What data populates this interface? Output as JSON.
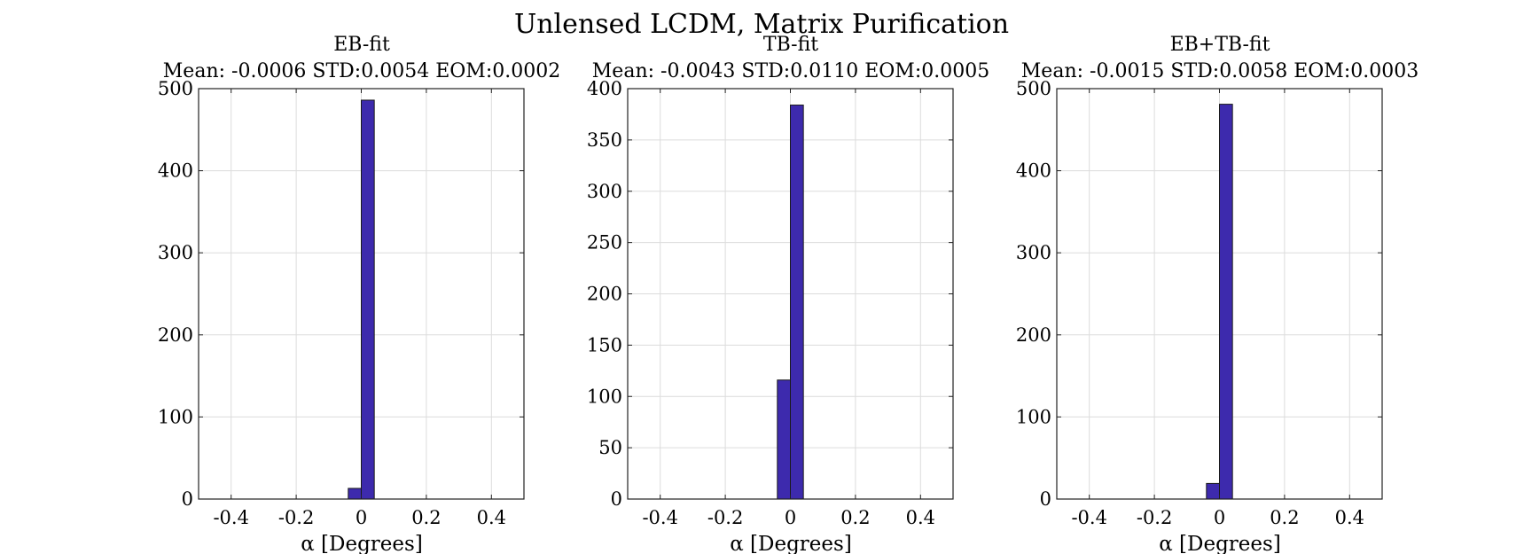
{
  "figure": {
    "title": "Unlensed LCDM, Matrix Purification",
    "bar_color": "#3d2aad"
  },
  "chart_data": [
    {
      "type": "bar",
      "title": "EB-fit",
      "subtitle": "Mean: -0.0006 STD:0.0054 EOM:0.0002",
      "xlabel": "α [Degrees]",
      "ylabel": "",
      "xlim": [
        -0.5,
        0.5
      ],
      "ylim": [
        0,
        500
      ],
      "xticks": [
        -0.4,
        -0.2,
        0,
        0.2,
        0.4
      ],
      "xtick_labels": [
        "-0.4",
        "-0.2",
        "0",
        "0.2",
        "0.4"
      ],
      "yticks": [
        0,
        100,
        200,
        300,
        400,
        500
      ],
      "ytick_labels": [
        "0",
        "100",
        "200",
        "300",
        "400",
        "500"
      ],
      "grid": true,
      "bin_edges": [
        -0.04,
        0,
        0.04
      ],
      "values": [
        13,
        486
      ]
    },
    {
      "type": "bar",
      "title": "TB-fit",
      "subtitle": "Mean: -0.0043 STD:0.0110 EOM:0.0005",
      "xlabel": "α [Degrees]",
      "ylabel": "",
      "xlim": [
        -0.5,
        0.5
      ],
      "ylim": [
        0,
        400
      ],
      "xticks": [
        -0.4,
        -0.2,
        0,
        0.2,
        0.4
      ],
      "xtick_labels": [
        "-0.4",
        "-0.2",
        "0",
        "0.2",
        "0.4"
      ],
      "yticks": [
        0,
        50,
        100,
        150,
        200,
        250,
        300,
        350,
        400
      ],
      "ytick_labels": [
        "0",
        "50",
        "100",
        "150",
        "200",
        "250",
        "300",
        "350",
        "400"
      ],
      "grid": true,
      "bin_edges": [
        -0.04,
        0,
        0.04
      ],
      "values": [
        116,
        384
      ]
    },
    {
      "type": "bar",
      "title": "EB+TB-fit",
      "subtitle": "Mean: -0.0015 STD:0.0058 EOM:0.0003",
      "xlabel": "α [Degrees]",
      "ylabel": "",
      "xlim": [
        -0.5,
        0.5
      ],
      "ylim": [
        0,
        500
      ],
      "xticks": [
        -0.4,
        -0.2,
        0,
        0.2,
        0.4
      ],
      "xtick_labels": [
        "-0.4",
        "-0.2",
        "0",
        "0.2",
        "0.4"
      ],
      "yticks": [
        0,
        100,
        200,
        300,
        400,
        500
      ],
      "ytick_labels": [
        "0",
        "100",
        "200",
        "300",
        "400",
        "500"
      ],
      "grid": true,
      "bin_edges": [
        -0.04,
        0,
        0.04
      ],
      "values": [
        19,
        481
      ]
    }
  ]
}
